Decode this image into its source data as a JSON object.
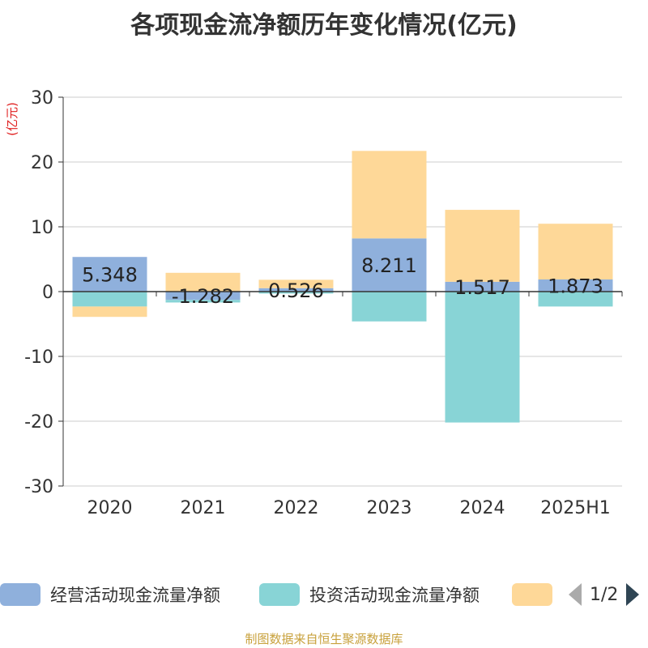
{
  "title": "各项现金流净额历年变化情况(亿元)",
  "unit_label": "(亿元)",
  "source": "制图数据来自恒生聚源数据库",
  "pager": {
    "text": "1/2"
  },
  "colors": {
    "operating": "#8fb0dc",
    "investing": "#88d4d6",
    "financing": "#fed898",
    "axis": "#333333",
    "grid": "#cccccc",
    "unit": "#e02020"
  },
  "chart_data": {
    "type": "bar",
    "stacked": true,
    "categories": [
      "2020",
      "2021",
      "2022",
      "2023",
      "2024",
      "2025H1"
    ],
    "ylim": [
      -30,
      30
    ],
    "yticks": [
      30,
      20,
      10,
      0,
      -10,
      -20,
      -30
    ],
    "ylabel": "(亿元)",
    "grid": true,
    "legend_position": "bottom",
    "series": [
      {
        "name": "经营活动现金流量净额",
        "values": [
          5.348,
          -1.282,
          0.526,
          8.211,
          1.517,
          1.873
        ],
        "labels": [
          "5.348",
          "-1.282",
          "0.526",
          "8.211",
          "1.517",
          "1.873"
        ]
      },
      {
        "name": "投资活动现金流量净额",
        "values": [
          -2.3,
          -0.4,
          -0.3,
          -4.6,
          -20.2,
          -2.3
        ]
      },
      {
        "name": "",
        "values": [
          -1.6,
          2.9,
          1.3,
          13.5,
          11.1,
          8.6
        ]
      }
    ]
  }
}
